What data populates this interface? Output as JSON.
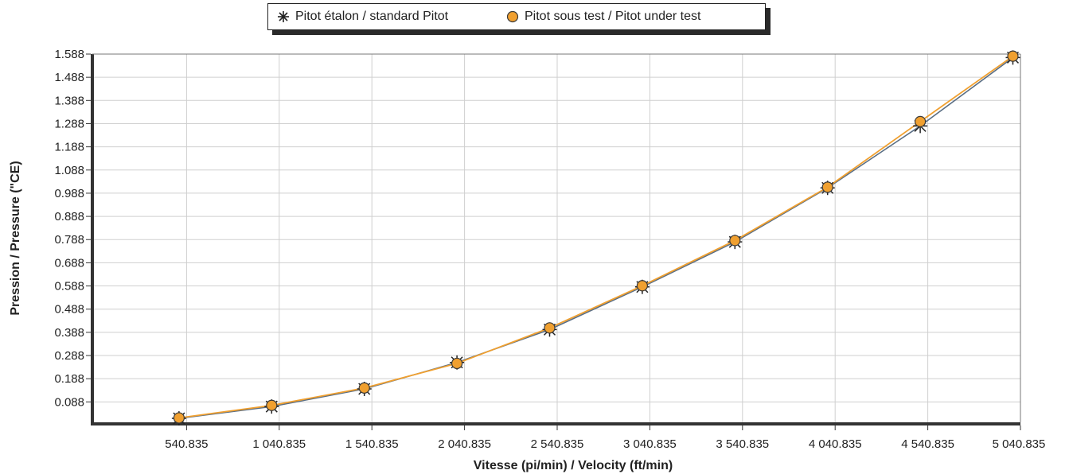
{
  "chart_data": {
    "type": "line",
    "title": "",
    "xlabel": "Vitesse (pi/min) / Velocity (ft/min)",
    "ylabel": "Pression  / Pressure (\"CE)",
    "xlim": [
      40.835,
      5040.835
    ],
    "ylim": [
      0.0,
      1.588
    ],
    "x_ticks": [
      540.835,
      1040.835,
      1540.835,
      2040.835,
      2540.835,
      3040.835,
      3540.835,
      4040.835,
      4540.835,
      5040.835
    ],
    "x_tick_labels": [
      "540.835",
      "1 040.835",
      "1 540.835",
      "2 040.835",
      "2 540.835",
      "3 040.835",
      "3 540.835",
      "4 040.835",
      "4 540.835",
      "5 040.835"
    ],
    "y_ticks": [
      0.088,
      0.188,
      0.288,
      0.388,
      0.488,
      0.588,
      0.688,
      0.788,
      0.888,
      0.988,
      1.088,
      1.188,
      1.288,
      1.388,
      1.488,
      1.588
    ],
    "y_tick_labels": [
      "0.088",
      "0.188",
      "0.288",
      "0.388",
      "0.488",
      "0.588",
      "0.688",
      "0.788",
      "0.888",
      "0.988",
      "1.088",
      "1.188",
      "1.288",
      "1.388",
      "1.488",
      "1.588"
    ],
    "grid": true,
    "legend_position": "top-center",
    "series": [
      {
        "name": "Pitot étalon / standard Pitot",
        "marker": "asterisk",
        "color": "#5a6e84",
        "x": [
          500,
          1000,
          1500,
          2000,
          2500,
          3000,
          3500,
          4000,
          4500,
          5000
        ],
        "y": [
          0.017,
          0.068,
          0.144,
          0.258,
          0.4,
          0.584,
          0.778,
          1.011,
          1.278,
          1.573
        ]
      },
      {
        "name": "Pitot sous test / Pitot under test",
        "marker": "circle",
        "color": "#f0a030",
        "x": [
          500,
          1000,
          1500,
          2000,
          2500,
          3000,
          3500,
          4000,
          4500,
          5000
        ],
        "y": [
          0.019,
          0.073,
          0.148,
          0.254,
          0.407,
          0.589,
          0.784,
          1.014,
          1.297,
          1.579
        ]
      }
    ]
  }
}
